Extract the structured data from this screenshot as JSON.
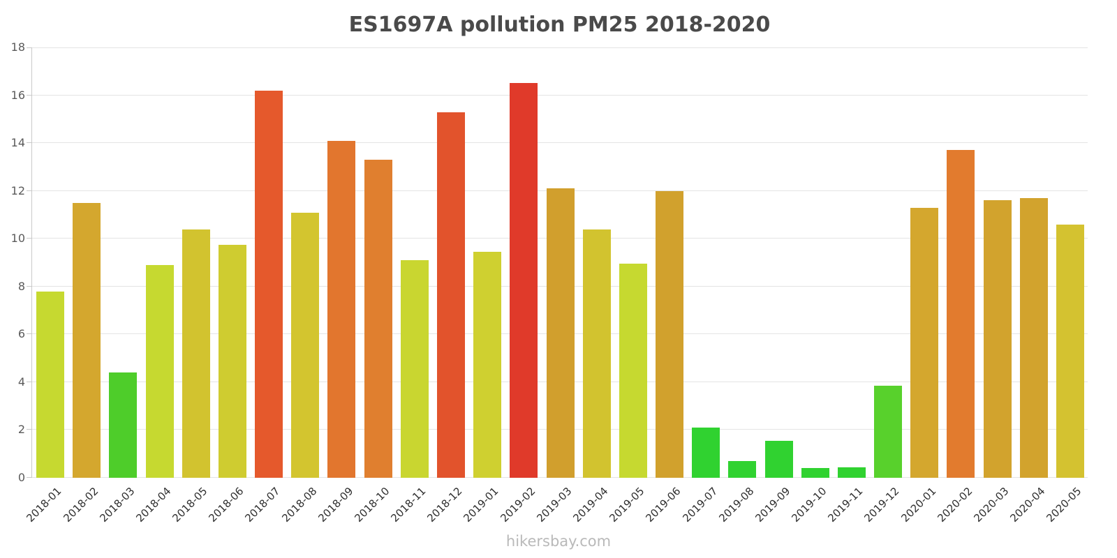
{
  "page": {
    "watermark": "hikersbay.com"
  },
  "chart_data": {
    "type": "bar",
    "title": "ES1697A pollution PM25 2018-2020",
    "xlabel": "",
    "ylabel": "",
    "ylim": [
      0,
      18
    ],
    "yticks": [
      0,
      2,
      4,
      6,
      8,
      10,
      12,
      14,
      16,
      18
    ],
    "grid": true,
    "legend_position": "none",
    "categories": [
      "2018-01",
      "2018-02",
      "2018-03",
      "2018-04",
      "2018-05",
      "2018-06",
      "2018-07",
      "2018-08",
      "2018-09",
      "2018-10",
      "2018-11",
      "2018-12",
      "2019-01",
      "2019-02",
      "2019-03",
      "2019-04",
      "2019-05",
      "2019-06",
      "2019-07",
      "2019-08",
      "2019-09",
      "2019-10",
      "2019-11",
      "2019-12",
      "2020-01",
      "2020-02",
      "2020-03",
      "2020-04",
      "2020-05"
    ],
    "values": [
      7.8,
      11.5,
      4.4,
      8.9,
      10.4,
      9.75,
      16.2,
      11.1,
      14.1,
      13.3,
      9.1,
      15.3,
      9.45,
      16.5,
      12.1,
      10.4,
      8.95,
      12.0,
      2.1,
      0.7,
      1.55,
      0.4,
      0.45,
      3.85,
      11.3,
      13.7,
      11.6,
      11.7,
      10.6
    ],
    "colors": [
      "#c6d930",
      "#d4a72e",
      "#4ecd2a",
      "#c6d930",
      "#d2c32f",
      "#cfcc30",
      "#e5592c",
      "#d3c52f",
      "#e2762e",
      "#e07f2f",
      "#c9d630",
      "#e2532c",
      "#cfd030",
      "#e03a2a",
      "#d19f2d",
      "#d2c32f",
      "#c6d930",
      "#d1a12d",
      "#30d230",
      "#30d230",
      "#30d230",
      "#30d230",
      "#30d230",
      "#58d12c",
      "#d4a72e",
      "#e27b2e",
      "#d2a32d",
      "#d2a32d",
      "#d4c230"
    ]
  }
}
